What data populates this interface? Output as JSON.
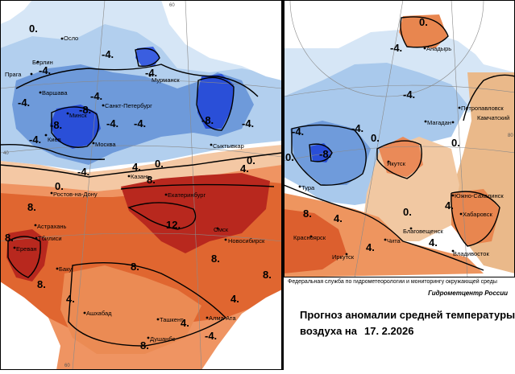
{
  "title": {
    "line1": "Прогноз аномалии средней температуры",
    "line2": "воздуха на",
    "date": "17. 2.2026"
  },
  "credits": {
    "service": "Федеральная служба по гидрометеорологии и мониторингу окружающей среды",
    "center": "Гидрометцентр России"
  },
  "cities": {
    "oslo": "Осло",
    "berlin": "Берлин",
    "praga": "Прага",
    "varshava": "Варшава",
    "minsk": "Минск",
    "kiev": "Киев",
    "moskva": "Москва",
    "spb": "Санкт-Петербург",
    "murmansk": "Мурманск",
    "syktyvkar": "Сыктывкар",
    "kazan": "Казань",
    "rostov": "Ростов-на-Дону",
    "ekaterinburg": "Екатеринбург",
    "astrakhan": "Астрахань",
    "tbilisi": "Тбилиси",
    "erevan": "Ереван",
    "baku": "Баку",
    "omsk": "Омск",
    "novosibirsk": "Новосибирск",
    "ashkhabad": "Ашхабад",
    "tashkent": "Ташкент",
    "almaata": "Алма-Ата",
    "dushanbe": "Душанбе",
    "anadyr": "Анадырь",
    "petropavlovsk": "Петропавловск",
    "kamchatsky": "Камчатский",
    "magadan": "Магадан",
    "yakutsk": "Якутск",
    "tura": "Тура",
    "yuzhno": "Южно-Сахалинск",
    "khabarovsk": "Хабаровск",
    "blagoveshchensk": "Благовещенск",
    "krasnoyarsk": "Красноярск",
    "chita": "Чита",
    "irkutsk": "Иркутск",
    "vladivostok": "Владивосток"
  },
  "isolines": {
    "zero": "0.",
    "minus4": "-4.",
    "minus8": "-8.",
    "plus4": "4.",
    "plus8": "8.",
    "plus12": "12."
  },
  "grid": {
    "g40": "40",
    "g60": "60",
    "g60b": "60",
    "g80": "80"
  },
  "colors": {
    "deep_blue": "#2040d8",
    "mid_blue": "#5a8ad6",
    "light_blue": "#a8c8ec",
    "pale_blue": "#cfe2f5",
    "peach": "#f3c7a1",
    "orange": "#ee9460",
    "red_orange": "#e0602e",
    "dark_red": "#b8261e",
    "tan": "#e9b98a"
  }
}
